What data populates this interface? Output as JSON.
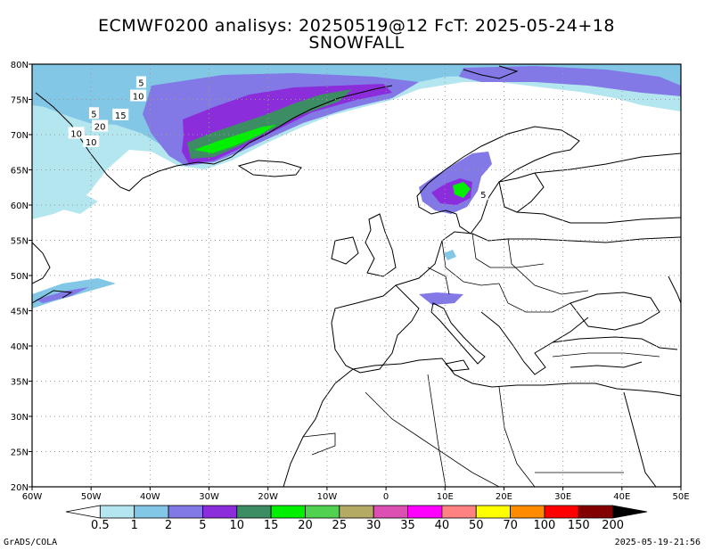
{
  "header": {
    "title_line1": "ECMWF0200 analisys: 20250519@12 FcT: 2025-05-24+18",
    "title_line2": "SNOWFALL"
  },
  "map": {
    "lon_range": [
      -60,
      50
    ],
    "lat_range": [
      20,
      80
    ],
    "lon_ticks": [
      "60W",
      "50W",
      "40W",
      "30W",
      "20W",
      "10W",
      "0",
      "10E",
      "20E",
      "30E",
      "40E",
      "50E"
    ],
    "lat_ticks": [
      "20N",
      "25N",
      "30N",
      "35N",
      "40N",
      "45N",
      "50N",
      "55N",
      "60N",
      "65N",
      "70N",
      "75N",
      "80N"
    ],
    "gridlines": "dotted",
    "contour_labels": [
      {
        "text": "5",
        "lon": -41.5,
        "lat": 77.4
      },
      {
        "text": "10",
        "lon": -42,
        "lat": 75.5
      },
      {
        "text": "5",
        "lon": -49.5,
        "lat": 73.0
      },
      {
        "text": "15",
        "lon": -45,
        "lat": 72.8
      },
      {
        "text": "20",
        "lon": -48.5,
        "lat": 71.2
      },
      {
        "text": "10",
        "lon": -52.5,
        "lat": 70.2
      },
      {
        "text": "10",
        "lon": -50,
        "lat": 69.0
      },
      {
        "text": "5",
        "lon": 16.5,
        "lat": 61.5
      }
    ]
  },
  "colorbar": {
    "labels": [
      "0.5",
      "1",
      "2",
      "5",
      "10",
      "15",
      "20",
      "25",
      "30",
      "35",
      "40",
      "50",
      "70",
      "100",
      "150",
      "200"
    ],
    "colors": [
      "#ffffff",
      "#b4e6f0",
      "#82c8e6",
      "#8278e6",
      "#8c2ddc",
      "#3c8c64",
      "#00f000",
      "#50d250",
      "#b4aa64",
      "#dc50b4",
      "#ff00ff",
      "#ff8282",
      "#ffff00",
      "#ff8c00",
      "#ff0000",
      "#820000",
      "#000000"
    ]
  },
  "footer": {
    "credit": "GrADS/COLA",
    "timestamp": "2025-05-19-21:56"
  }
}
